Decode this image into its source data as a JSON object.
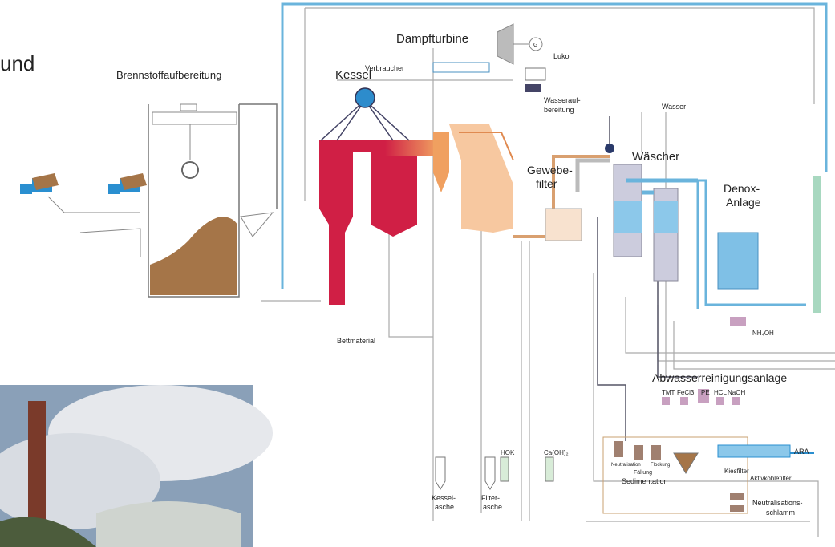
{
  "title_fragment": "und",
  "fuel_prep": {
    "title": "Brennstoffaufbereitung"
  },
  "boiler": {
    "title": "Kessel",
    "bed_material": "Bettmaterial",
    "ash": [
      "Kessel-",
      "asche"
    ]
  },
  "turbine": {
    "title": "Dampfturbine",
    "generator": "G",
    "consumer": "Verbraucher",
    "condenser": "Luko",
    "water_treatment": [
      "Wasserauf-",
      "bereitung"
    ]
  },
  "filter": {
    "title": [
      "Gewebe-",
      "filter"
    ],
    "ash": [
      "Filter-",
      "asche"
    ],
    "coke": "HOK",
    "lime": "Ca(OH)₂"
  },
  "scrubber": {
    "title": "Wäscher",
    "water": "Wasser"
  },
  "denox": {
    "title": [
      "Denox-",
      "Anlage"
    ],
    "reagent": "NH₄OH"
  },
  "wastewater": {
    "title": "Abwasserreinigungsanlage",
    "chemicals": [
      "TMT",
      "FeCl3",
      "PE",
      "HCL",
      "NaOH"
    ],
    "steps": [
      "Neutralisation",
      "Fällung",
      "Flockung"
    ],
    "sedimentation": "Sedimentation",
    "gravel_filter": "Kiesfilter",
    "carbon_filter": "Aktivkohlefilter",
    "outlet": "ARA",
    "sludge": [
      "Neutralisations-",
      "schlamm"
    ]
  }
}
